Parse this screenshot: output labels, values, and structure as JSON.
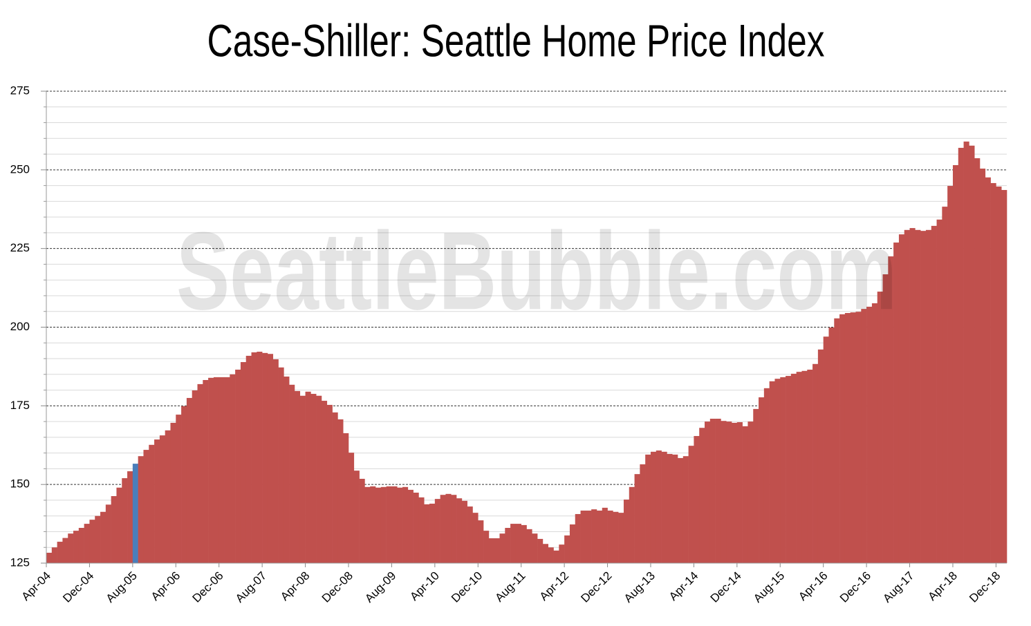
{
  "chart_data": {
    "type": "bar",
    "title": "Case-Shiller: Seattle Home Price Index",
    "watermark": "SeattleBubble.com",
    "color": "#c0504d",
    "highlight_index": 16,
    "highlight_color": "#4a7ebb",
    "ylim": [
      125,
      275
    ],
    "yticks": [
      125,
      150,
      175,
      200,
      225,
      250,
      275
    ],
    "minor_yticks": [
      130,
      135,
      140,
      145,
      155,
      160,
      165,
      170,
      180,
      185,
      190,
      195,
      205,
      210,
      215,
      220,
      230,
      235,
      240,
      245,
      255,
      260,
      265,
      270
    ],
    "grid": true,
    "categories": [
      "Apr-04",
      null,
      null,
      null,
      null,
      null,
      null,
      null,
      "Dec-04",
      null,
      null,
      null,
      null,
      null,
      null,
      null,
      "Aug-05",
      null,
      null,
      null,
      null,
      null,
      null,
      null,
      "Apr-06",
      null,
      null,
      null,
      null,
      null,
      null,
      null,
      "Dec-06",
      null,
      null,
      null,
      null,
      null,
      null,
      null,
      "Aug-07",
      null,
      null,
      null,
      null,
      null,
      null,
      null,
      "Apr-08",
      null,
      null,
      null,
      null,
      null,
      null,
      null,
      "Dec-08",
      null,
      null,
      null,
      null,
      null,
      null,
      null,
      "Aug-09",
      null,
      null,
      null,
      null,
      null,
      null,
      null,
      "Apr-10",
      null,
      null,
      null,
      null,
      null,
      null,
      null,
      "Dec-10",
      null,
      null,
      null,
      null,
      null,
      null,
      null,
      "Aug-11",
      null,
      null,
      null,
      null,
      null,
      null,
      null,
      "Apr-12",
      null,
      null,
      null,
      null,
      null,
      null,
      null,
      "Dec-12",
      null,
      null,
      null,
      null,
      null,
      null,
      null,
      "Aug-13",
      null,
      null,
      null,
      null,
      null,
      null,
      null,
      "Apr-14",
      null,
      null,
      null,
      null,
      null,
      null,
      null,
      "Dec-14",
      null,
      null,
      null,
      null,
      null,
      null,
      null,
      "Aug-15",
      null,
      null,
      null,
      null,
      null,
      null,
      null,
      "Apr-16",
      null,
      null,
      null,
      null,
      null,
      null,
      null,
      "Dec-16",
      null,
      null,
      null,
      null,
      null,
      null,
      null,
      "Aug-17",
      null,
      null,
      null,
      null,
      null,
      null,
      null,
      "Apr-18",
      null,
      null,
      null,
      null,
      null,
      null,
      null,
      "Dec-18",
      null
    ],
    "values": [
      128.3,
      130,
      131.8,
      133,
      134.4,
      135.3,
      136.2,
      137.5,
      138.8,
      140,
      141.3,
      143.6,
      146.3,
      149,
      152,
      154.2,
      156.6,
      159,
      161,
      162.6,
      164.3,
      165.6,
      167.2,
      169.6,
      172.2,
      174.9,
      177.5,
      179.9,
      181.9,
      183.2,
      183.9,
      184.1,
      184.1,
      184.1,
      185,
      186.5,
      188.9,
      190.9,
      192,
      192.2,
      191.8,
      191.5,
      189.8,
      187.2,
      184.3,
      181.7,
      179.7,
      178.2,
      179.5,
      178.8,
      178.2,
      176.6,
      175.3,
      172.9,
      170.7,
      166.3,
      160.1,
      154.4,
      151.8,
      149.2,
      149.4,
      149,
      149.2,
      149.4,
      149.4,
      149,
      149.2,
      148.3,
      147.4,
      145.9,
      143.7,
      143.9,
      145.4,
      146.7,
      147,
      146.7,
      145.6,
      144.8,
      143,
      141,
      138.6,
      135.3,
      132.9,
      132.9,
      134.4,
      136.2,
      137.5,
      137.5,
      137.1,
      135.8,
      134.4,
      132.7,
      131.1,
      130,
      129,
      130.9,
      133.8,
      137.3,
      140.6,
      141.7,
      141.7,
      142.1,
      141.7,
      142.6,
      141.7,
      141.3,
      141,
      145.2,
      149.2,
      153.3,
      156.4,
      159.5,
      160.4,
      160.8,
      160.4,
      159.7,
      159.5,
      158.4,
      159,
      162.3,
      165.4,
      168,
      170,
      170.9,
      170.9,
      170.2,
      170,
      169.6,
      169.8,
      168.5,
      170,
      174,
      177.7,
      180.6,
      182.8,
      183.6,
      184.1,
      184.5,
      185.2,
      185.8,
      186.1,
      186.5,
      188.3,
      192.9,
      197,
      199.9,
      202.8,
      204.1,
      204.5,
      204.7,
      204.9,
      205.8,
      206.5,
      207.6,
      211.3,
      216.8,
      222.5,
      226.9,
      229.5,
      230.9,
      231.5,
      230.9,
      230.6,
      230.9,
      232.2,
      234.2,
      238.3,
      244.9,
      251.5,
      257,
      259,
      257.7,
      253.7,
      250.4,
      247.6,
      245.8,
      244.7,
      243.6
    ]
  }
}
